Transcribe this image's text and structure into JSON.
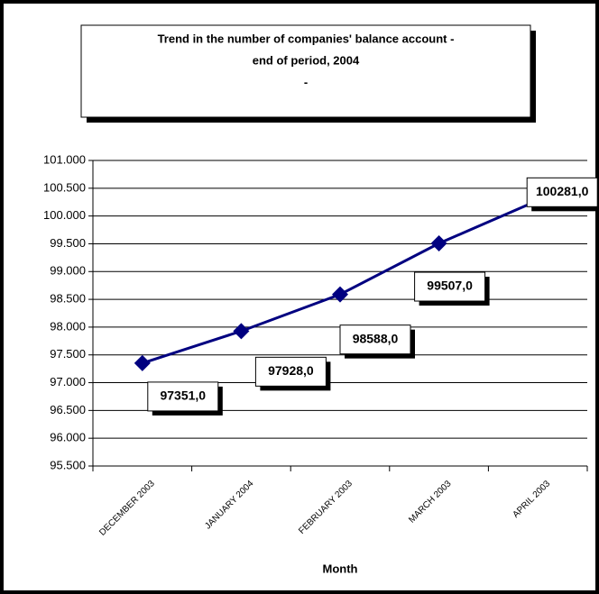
{
  "chart_data": {
    "type": "line",
    "title": [
      "Trend in the number of companies' balance account -",
      "end of period, 2004",
      "-"
    ],
    "x_label": "Month",
    "categories": [
      "DECEMBER 2003",
      "JANUARY 2004",
      "FEBRUARY 2003",
      "MARCH 2003",
      "APRIL 2003"
    ],
    "series": [
      {
        "color": "#000080",
        "values": [
          97351,
          97928,
          98588,
          99507,
          100281
        ],
        "value_labels": [
          "97351,0",
          "97928,0",
          "98588,0",
          "99507,0",
          "100281,0"
        ]
      }
    ],
    "ylim": [
      95500,
      101000
    ],
    "yticks": [
      {
        "value": 95500,
        "label": "95.500"
      },
      {
        "value": 96000,
        "label": "96.000"
      },
      {
        "value": 96500,
        "label": "96.500"
      },
      {
        "value": 97000,
        "label": "97.000"
      },
      {
        "value": 97500,
        "label": "97.500"
      },
      {
        "value": 98000,
        "label": "98.000"
      },
      {
        "value": 98500,
        "label": "98.500"
      },
      {
        "value": 99000,
        "label": "99.000"
      },
      {
        "value": 99500,
        "label": "99.500"
      },
      {
        "value": 100000,
        "label": "100.000"
      },
      {
        "value": 100500,
        "label": "100.500"
      },
      {
        "value": 101000,
        "label": "101.000"
      }
    ],
    "grid": true
  }
}
